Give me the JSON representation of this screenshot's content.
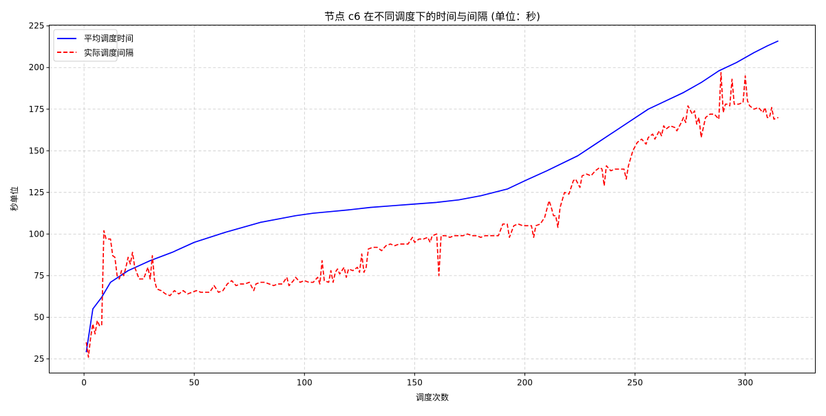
{
  "chart_data": {
    "type": "line",
    "title": "节点 c6 在不同调度下的时间与间隔 (单位：秒)",
    "xlabel": "调度次数",
    "ylabel": "秒单位",
    "xlim": [
      -15.8,
      331.8
    ],
    "ylim": [
      16.5,
      225.5
    ],
    "x_ticks": [
      0,
      50,
      100,
      150,
      200,
      250,
      300
    ],
    "y_ticks": [
      25,
      50,
      75,
      100,
      125,
      150,
      175,
      200,
      225
    ],
    "grid": true,
    "legend_position": "top-left",
    "colors": {
      "series1": "#0000ff",
      "series2": "#ff0000",
      "grid": "#b0b0b0"
    },
    "series": [
      {
        "name": "平均调度时间",
        "style": "solid",
        "points": [
          [
            1,
            29
          ],
          [
            4,
            55
          ],
          [
            8,
            62
          ],
          [
            12,
            71
          ],
          [
            20,
            78
          ],
          [
            30,
            84
          ],
          [
            40,
            89
          ],
          [
            50,
            95
          ],
          [
            64,
            101
          ],
          [
            72,
            104
          ],
          [
            80,
            107
          ],
          [
            88,
            109
          ],
          [
            96,
            111
          ],
          [
            104,
            112.5
          ],
          [
            112,
            113.5
          ],
          [
            120,
            114.5
          ],
          [
            130,
            116
          ],
          [
            140,
            117
          ],
          [
            150,
            118
          ],
          [
            160,
            119
          ],
          [
            170,
            120.5
          ],
          [
            180,
            123
          ],
          [
            192,
            127
          ],
          [
            200,
            132
          ],
          [
            210,
            138
          ],
          [
            224,
            147
          ],
          [
            232,
            154
          ],
          [
            240,
            161
          ],
          [
            248,
            168
          ],
          [
            256,
            175
          ],
          [
            264,
            180
          ],
          [
            272,
            185
          ],
          [
            280,
            191
          ],
          [
            288,
            198
          ],
          [
            296,
            203
          ],
          [
            304,
            209
          ],
          [
            310,
            213
          ],
          [
            315,
            216
          ]
        ]
      },
      {
        "name": "实际调度间隔",
        "style": "dashed",
        "points": [
          [
            1,
            35
          ],
          [
            2,
            26
          ],
          [
            3,
            38
          ],
          [
            4,
            46
          ],
          [
            5,
            40
          ],
          [
            6,
            48
          ],
          [
            7,
            45
          ],
          [
            8,
            45
          ],
          [
            9,
            102
          ],
          [
            10,
            97
          ],
          [
            12,
            97
          ],
          [
            13,
            87
          ],
          [
            14,
            86
          ],
          [
            15,
            75
          ],
          [
            16,
            73
          ],
          [
            17,
            78
          ],
          [
            18,
            75
          ],
          [
            19,
            80
          ],
          [
            20,
            86
          ],
          [
            21,
            82
          ],
          [
            22,
            89
          ],
          [
            23,
            80
          ],
          [
            25,
            73
          ],
          [
            27,
            73
          ],
          [
            29,
            80
          ],
          [
            30,
            73
          ],
          [
            31,
            87
          ],
          [
            32,
            72
          ],
          [
            33,
            67
          ],
          [
            35,
            66
          ],
          [
            37,
            64
          ],
          [
            39,
            63
          ],
          [
            41,
            66
          ],
          [
            43,
            64
          ],
          [
            45,
            66
          ],
          [
            47,
            64
          ],
          [
            49,
            65
          ],
          [
            51,
            66
          ],
          [
            53,
            65
          ],
          [
            55,
            65
          ],
          [
            57,
            65
          ],
          [
            59,
            69
          ],
          [
            61,
            65
          ],
          [
            63,
            66
          ],
          [
            65,
            70
          ],
          [
            67,
            72
          ],
          [
            69,
            69
          ],
          [
            71,
            70
          ],
          [
            73,
            70
          ],
          [
            75,
            71
          ],
          [
            77,
            66
          ],
          [
            78,
            70
          ],
          [
            80,
            71
          ],
          [
            82,
            71
          ],
          [
            84,
            70
          ],
          [
            86,
            69
          ],
          [
            88,
            70
          ],
          [
            90,
            70
          ],
          [
            92,
            74
          ],
          [
            93,
            69
          ],
          [
            95,
            72
          ],
          [
            96,
            74
          ],
          [
            98,
            71
          ],
          [
            100,
            72
          ],
          [
            102,
            71
          ],
          [
            104,
            71
          ],
          [
            106,
            74
          ],
          [
            107,
            70
          ],
          [
            108,
            84
          ],
          [
            109,
            72
          ],
          [
            111,
            71
          ],
          [
            112,
            78
          ],
          [
            113,
            71
          ],
          [
            114,
            77
          ],
          [
            115,
            79
          ],
          [
            116,
            76
          ],
          [
            118,
            80
          ],
          [
            119,
            74
          ],
          [
            120,
            79
          ],
          [
            122,
            78
          ],
          [
            124,
            80
          ],
          [
            125,
            77
          ],
          [
            126,
            88
          ],
          [
            127,
            77
          ],
          [
            128,
            80
          ],
          [
            129,
            91
          ],
          [
            131,
            92
          ],
          [
            133,
            92
          ],
          [
            135,
            90
          ],
          [
            137,
            93
          ],
          [
            139,
            94
          ],
          [
            141,
            93
          ],
          [
            143,
            94
          ],
          [
            145,
            94
          ],
          [
            147,
            94
          ],
          [
            149,
            98
          ],
          [
            150,
            95
          ],
          [
            152,
            97
          ],
          [
            154,
            97
          ],
          [
            156,
            98
          ],
          [
            157,
            95
          ],
          [
            158,
            99
          ],
          [
            160,
            100
          ],
          [
            161,
            75
          ],
          [
            162,
            99
          ],
          [
            164,
            99
          ],
          [
            166,
            98
          ],
          [
            168,
            99
          ],
          [
            170,
            99
          ],
          [
            172,
            99
          ],
          [
            174,
            100
          ],
          [
            176,
            99
          ],
          [
            178,
            99
          ],
          [
            180,
            98
          ],
          [
            182,
            99
          ],
          [
            184,
            99
          ],
          [
            186,
            99
          ],
          [
            188,
            99
          ],
          [
            190,
            106
          ],
          [
            192,
            106
          ],
          [
            193,
            98
          ],
          [
            195,
            105
          ],
          [
            197,
            106
          ],
          [
            199,
            105
          ],
          [
            201,
            105
          ],
          [
            203,
            105
          ],
          [
            204,
            98
          ],
          [
            205,
            105
          ],
          [
            207,
            106
          ],
          [
            209,
            110
          ],
          [
            211,
            120
          ],
          [
            212,
            116
          ],
          [
            213,
            111
          ],
          [
            214,
            111
          ],
          [
            215,
            104
          ],
          [
            216,
            116
          ],
          [
            218,
            125
          ],
          [
            220,
            124
          ],
          [
            222,
            132
          ],
          [
            223,
            133
          ],
          [
            225,
            128
          ],
          [
            226,
            135
          ],
          [
            228,
            136
          ],
          [
            230,
            135
          ],
          [
            232,
            138
          ],
          [
            234,
            140
          ],
          [
            235,
            139
          ],
          [
            236,
            129
          ],
          [
            237,
            141
          ],
          [
            239,
            138
          ],
          [
            241,
            139
          ],
          [
            243,
            139
          ],
          [
            245,
            139
          ],
          [
            246,
            133
          ],
          [
            247,
            141
          ],
          [
            249,
            150
          ],
          [
            251,
            155
          ],
          [
            253,
            157
          ],
          [
            255,
            154
          ],
          [
            256,
            158
          ],
          [
            258,
            160
          ],
          [
            259,
            157
          ],
          [
            261,
            162
          ],
          [
            262,
            159
          ],
          [
            263,
            165
          ],
          [
            264,
            163
          ],
          [
            266,
            165
          ],
          [
            268,
            164
          ],
          [
            269,
            162
          ],
          [
            271,
            167
          ],
          [
            272,
            170
          ],
          [
            273,
            167
          ],
          [
            274,
            177
          ],
          [
            276,
            172
          ],
          [
            277,
            174
          ],
          [
            278,
            166
          ],
          [
            279,
            170
          ],
          [
            280,
            158
          ],
          [
            282,
            170
          ],
          [
            284,
            172
          ],
          [
            286,
            172
          ],
          [
            288,
            169
          ],
          [
            289,
            197
          ],
          [
            290,
            173
          ],
          [
            291,
            178
          ],
          [
            292,
            178
          ],
          [
            293,
            177
          ],
          [
            294,
            193
          ],
          [
            295,
            178
          ],
          [
            297,
            178
          ],
          [
            299,
            179
          ],
          [
            300,
            195
          ],
          [
            301,
            180
          ],
          [
            302,
            177
          ],
          [
            304,
            175
          ],
          [
            306,
            176
          ],
          [
            308,
            173
          ],
          [
            309,
            176
          ],
          [
            310,
            170
          ],
          [
            311,
            170
          ],
          [
            312,
            176
          ],
          [
            313,
            169
          ],
          [
            315,
            170
          ]
        ]
      }
    ]
  }
}
